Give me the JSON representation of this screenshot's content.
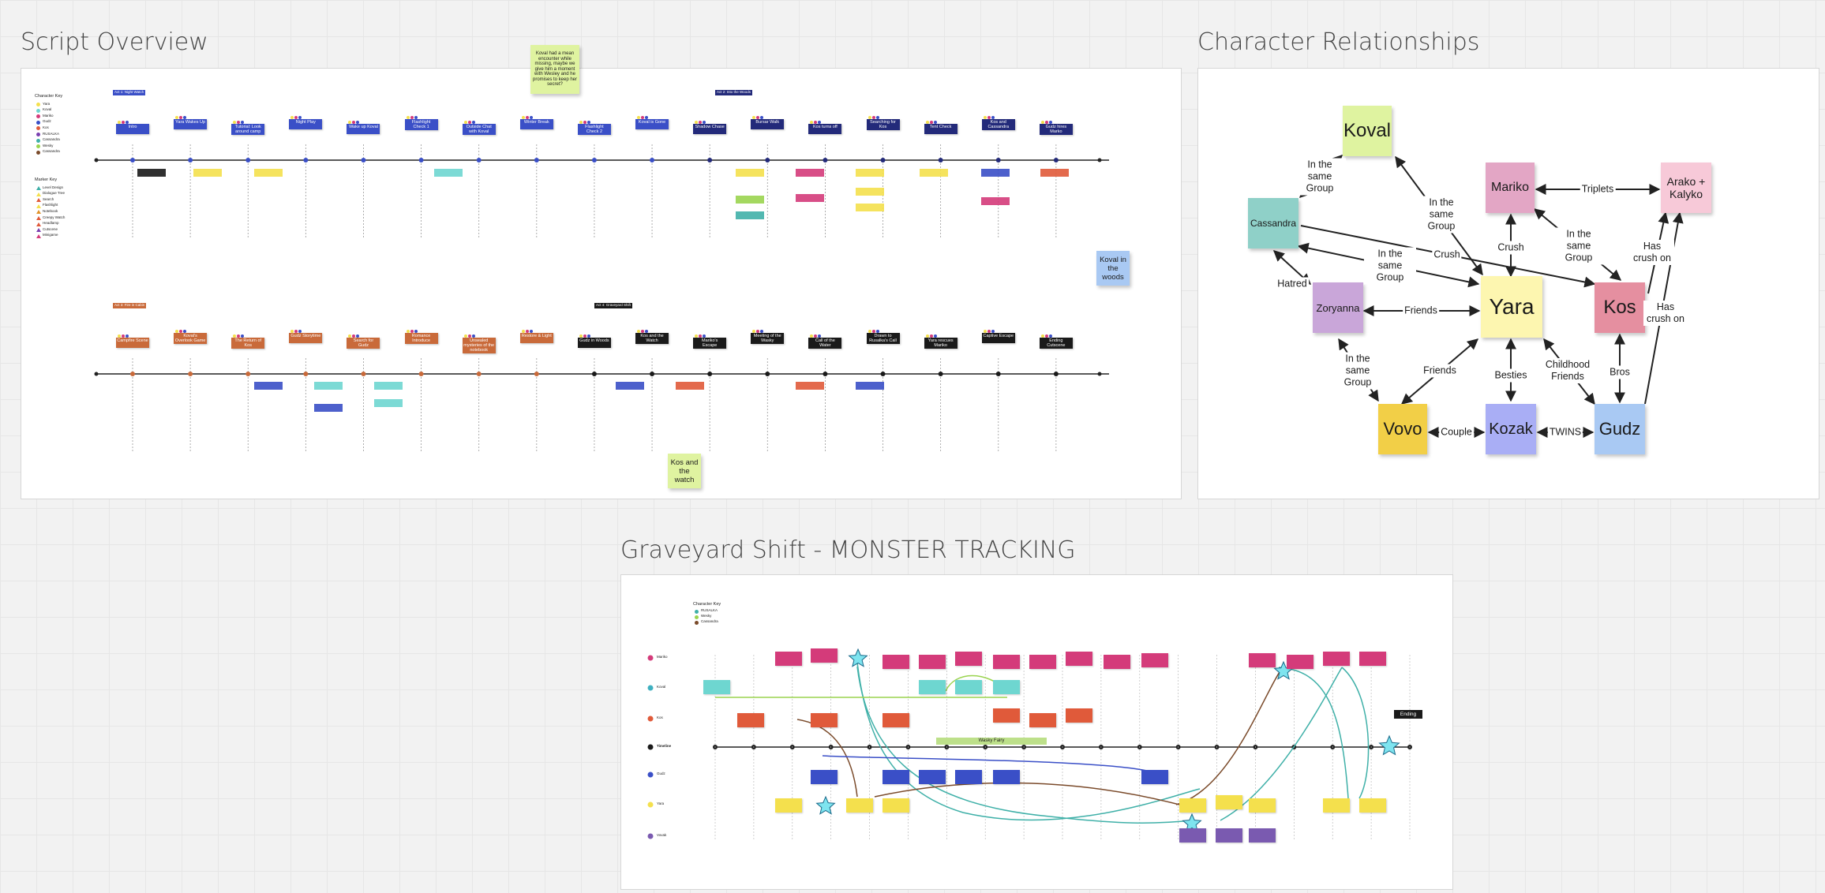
{
  "frames": {
    "script_overview": {
      "title": "Script Overview"
    },
    "character_relationships": {
      "title": "Character Relationships"
    },
    "graveyard": {
      "title": "Graveyard Shift - MONSTER TRACKING"
    }
  },
  "script_overview": {
    "floating_note": "Koval had a mean encounter while missing, maybe we give him a moment with Wesley and he promises to keep her secret?",
    "koval_in_woods": "Koval in the woods",
    "kos_and_watch": "Kos and the watch",
    "character_key": {
      "title": "Character Key",
      "items": [
        {
          "label": "Yara",
          "color": "#f4e04d"
        },
        {
          "label": "Koval",
          "color": "#6ed6d0"
        },
        {
          "label": "Mariko",
          "color": "#d43b7a"
        },
        {
          "label": "Gudz",
          "color": "#3a4fc7"
        },
        {
          "label": "Kos",
          "color": "#e05a3a"
        },
        {
          "label": "RUSALKA",
          "color": "#7a3fb0"
        },
        {
          "label": "Cassandra",
          "color": "#3fb0a8"
        },
        {
          "label": "Wesky",
          "color": "#9ad44f"
        },
        {
          "label": "Cassandra",
          "color": "#7a4a2a"
        }
      ]
    },
    "marker_key": {
      "title": "Marker Key",
      "items": [
        {
          "label": "Level Design",
          "color": "#3fb0a8"
        },
        {
          "label": "Dialogue Tree",
          "color": "#f4e04d"
        },
        {
          "label": "Search",
          "color": "#e05a3a"
        },
        {
          "label": "Flashlight",
          "color": "#f4e04d"
        },
        {
          "label": "Notebook",
          "color": "#e0932a"
        },
        {
          "label": "Creepy Watch",
          "color": "#e05a3a"
        },
        {
          "label": "Headlamp",
          "color": "#e05a3a"
        },
        {
          "label": "Cutscene",
          "color": "#7a3fb0"
        },
        {
          "label": "Minigame",
          "color": "#d43b7a"
        }
      ]
    },
    "acts": [
      {
        "label": "Act 1: Night Watch",
        "color": "#3a4fc7"
      },
      {
        "label": "Act 2: Into the Woods",
        "color": "#232a7a"
      },
      {
        "label": "Act 3: Fire in Cabin",
        "color": "#c96a3a"
      },
      {
        "label": "Act 4: Graveyard Shift",
        "color": "#1a1a1a"
      }
    ],
    "row1_events": [
      "Intro",
      "Yara Wakes Up",
      "Tutorial: Look around camp",
      "Night Play",
      "Wake up Koval",
      "Flashlight Check 1",
      "Outside Chat with Koval",
      "Winter Break",
      "Flashlight Check 2",
      "Koval is Gone",
      "Shadow Chase",
      "Bursar Walk",
      "Kos turns off",
      "Searching for Kos",
      "Tent Check",
      "Kos and Cassandra",
      "Gudz hires Marko"
    ],
    "row2_events": [
      "Campfire Scene",
      "Koval's Overlook Game",
      "The Return of Kos",
      "Gudz Storytime",
      "Search for Gudz",
      "Romance Introduce",
      "Unsealed mysteries of the notebook",
      "Restore & Light",
      "Gudz in Woods",
      "Kos and the Watch",
      "Mariko's Escape",
      "Meeting of the Wasky",
      "Call of the Water",
      "Drawn to Rusalka's Call",
      "Yara rescues Mariko",
      "Captive Escape",
      "Ending Cutscene"
    ]
  },
  "relationships": {
    "nodes": {
      "koval": "Koval",
      "mariko": "Mariko",
      "arako": "Arako + Kalyko",
      "cassandra": "Cassandra",
      "yara": "Yara",
      "kos": "Kos",
      "zoryanna": "Zoryanna",
      "vovo": "Vovo",
      "kozak": "Kozak",
      "gudz": "Gudz"
    },
    "colors": {
      "koval": "#dff3a0",
      "mariko": "#e3a6c5",
      "arako": "#f7c9d8",
      "cassandra": "#8fd0c8",
      "yara": "#fdf6b0",
      "kos": "#e58fa0",
      "zoryanna": "#c9a6d9",
      "vovo": "#f2cf47",
      "kozak": "#a9aef5",
      "gudz": "#a9c9f3"
    },
    "edge_labels": {
      "in_same_group_1": "In the same Group",
      "in_same_group_2": "In the same Group",
      "in_same_group_3": "In the same Group",
      "in_same_group_4": "In the same Group",
      "in_same_group_5": "In the same Group",
      "triplets": "Triplets",
      "crush_1": "Crush",
      "crush_2": "Crush",
      "has_crush_1": "Has crush on",
      "has_crush_2": "Has crush on",
      "hatred": "Hatred",
      "friends_1": "Friends",
      "friends_2": "Friends",
      "besties": "Besties",
      "childhood": "Childhood Friends",
      "bros": "Bros",
      "couple": "Couple",
      "twins": "TWINS"
    }
  },
  "graveyard": {
    "key": {
      "title": "Character Key",
      "items": [
        {
          "label": "RUSALKA",
          "color": "#3fb0a8"
        },
        {
          "label": "Wesky",
          "color": "#9ad44f"
        },
        {
          "label": "Cassandra",
          "color": "#7a4a2a"
        }
      ]
    },
    "lanes": [
      {
        "label": "Mariko",
        "color": "#d43b7a"
      },
      {
        "label": "Koval",
        "color": "#3fb0c0"
      },
      {
        "label": "Kos",
        "color": "#e05a3a"
      },
      {
        "label": "Timeline",
        "color": "#1a1a1a"
      },
      {
        "label": "Gudz",
        "color": "#3a4fc7"
      },
      {
        "label": "Yara",
        "color": "#f4e04d"
      },
      {
        "label": "Vovak",
        "color": "#7a5ab0"
      }
    ],
    "wasky_fairy": "Wasky Fairy",
    "ending": "Ending"
  }
}
